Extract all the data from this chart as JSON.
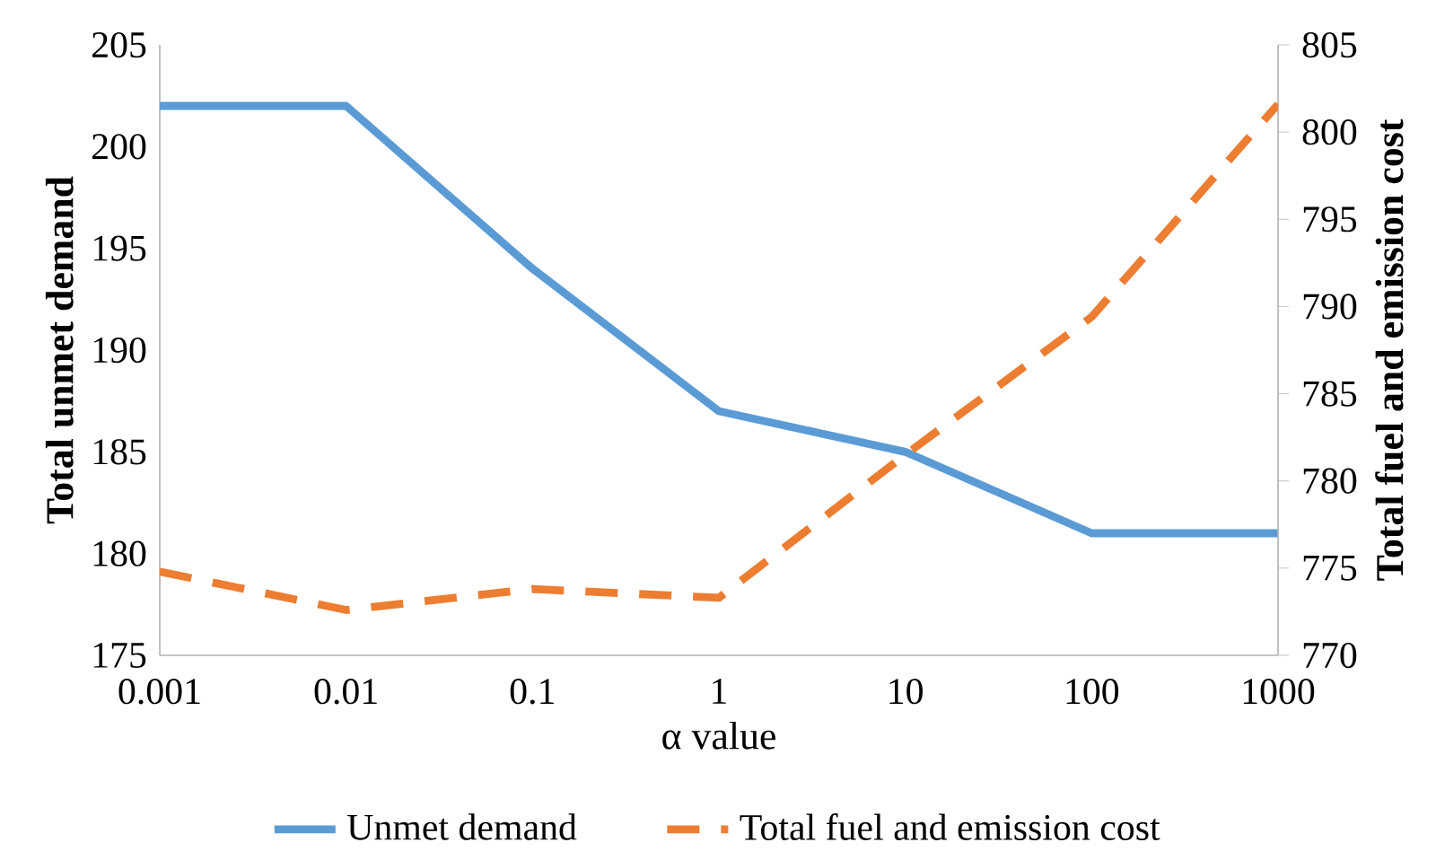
{
  "chart_data": {
    "type": "line",
    "categories": [
      "0.001",
      "0.01",
      "0.1",
      "1",
      "10",
      "100",
      "1000"
    ],
    "xlabel": "α value",
    "ylabel": "Total unmet demand",
    "y2label": "Total fuel and emission cost",
    "ylim": [
      175,
      205
    ],
    "yticks": [
      175,
      180,
      185,
      190,
      195,
      200,
      205
    ],
    "y2lim": [
      770,
      805
    ],
    "y2ticks": [
      770,
      775,
      780,
      785,
      790,
      795,
      800,
      805
    ],
    "legend": "bottom",
    "series": [
      {
        "name": "Unmet demand",
        "color": "#5b9bd5",
        "line_style": "solid",
        "values": [
          202,
          202,
          194,
          187,
          185,
          181,
          181
        ]
      },
      {
        "name": "Total fuel and emission cost",
        "color": "#ed7d31",
        "line_style": "dashed",
        "axis": "y2",
        "values": [
          774.8,
          772.6,
          773.8,
          773.3,
          781.5,
          789.4,
          801.6
        ]
      }
    ]
  }
}
